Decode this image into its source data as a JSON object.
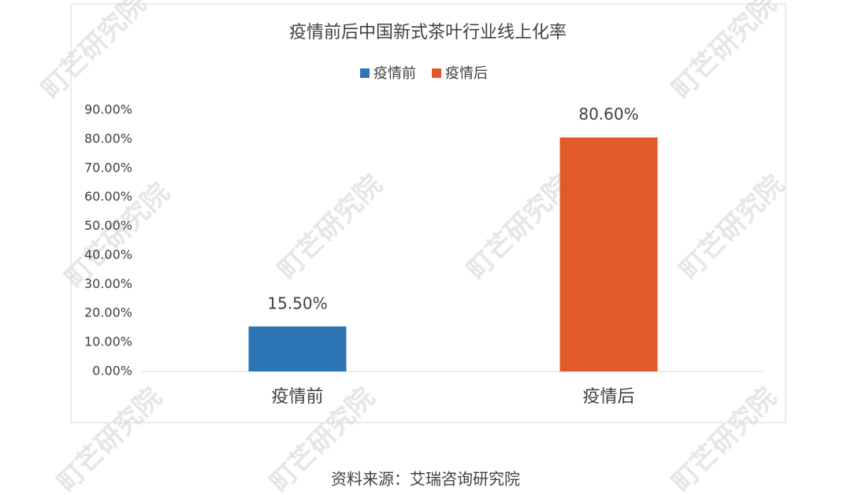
{
  "chart_data": {
    "type": "bar",
    "title": "疫情前后中国新式茶叶行业线上化率",
    "categories": [
      "疫情前",
      "疫情后"
    ],
    "series": [
      {
        "name": "疫情前",
        "color": "#2e75b6",
        "values": [
          15.5,
          null
        ],
        "value_labels": [
          "15.50%",
          null
        ]
      },
      {
        "name": "疫情后",
        "color": "#e2592a",
        "values": [
          null,
          80.6
        ],
        "value_labels": [
          null,
          "80.60%"
        ]
      }
    ],
    "ylim": [
      0,
      90
    ],
    "yticks": [
      {
        "value": 0,
        "label": "0.00%"
      },
      {
        "value": 10,
        "label": "10.00%"
      },
      {
        "value": 20,
        "label": "20.00%"
      },
      {
        "value": 30,
        "label": "30.00%"
      },
      {
        "value": 40,
        "label": "40.00%"
      },
      {
        "value": 50,
        "label": "50.00%"
      },
      {
        "value": 60,
        "label": "60.00%"
      },
      {
        "value": 70,
        "label": "70.00%"
      },
      {
        "value": 80,
        "label": "80.00%"
      },
      {
        "value": 90,
        "label": "90.00%"
      }
    ],
    "grid": false,
    "legend": "top",
    "source": "资料来源：艾瑞咨询研究院",
    "watermark": "町芒研究院"
  }
}
